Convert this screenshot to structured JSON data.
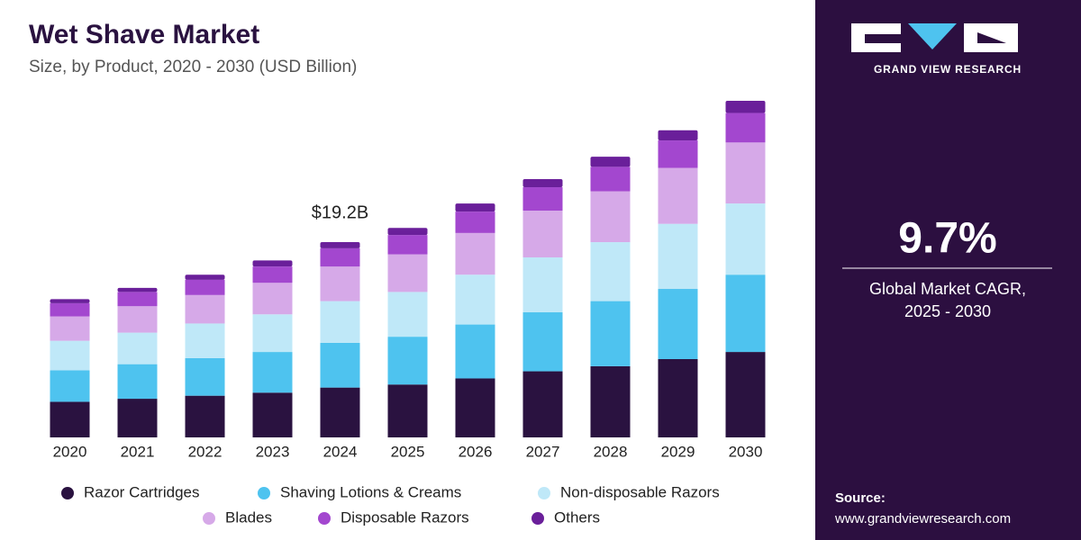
{
  "chart_data": {
    "type": "stacked_bar",
    "title": "Wet Shave Market",
    "subtitle": "Size, by Product, 2020 - 2030 (USD Billion)",
    "categories": [
      "2020",
      "2021",
      "2022",
      "2023",
      "2024",
      "2025",
      "2026",
      "2027",
      "2028",
      "2029",
      "2030"
    ],
    "series": [
      {
        "name": "Razor Cartridges",
        "color": "#2a1240",
        "values": [
          3.5,
          3.8,
          4.1,
          4.4,
          4.9,
          5.2,
          5.8,
          6.5,
          7.0,
          7.7,
          8.4
        ]
      },
      {
        "name": "Shaving Lotions & Creams",
        "color": "#4ec3ef",
        "values": [
          3.1,
          3.4,
          3.7,
          4.0,
          4.4,
          4.7,
          5.3,
          5.8,
          6.4,
          6.9,
          7.6
        ]
      },
      {
        "name": "Non-disposable Razors",
        "color": "#bfe8f8",
        "values": [
          2.9,
          3.1,
          3.4,
          3.7,
          4.1,
          4.4,
          4.9,
          5.4,
          5.8,
          6.4,
          7.0
        ]
      },
      {
        "name": "Blades",
        "color": "#d6a9e8",
        "values": [
          2.4,
          2.6,
          2.8,
          3.1,
          3.4,
          3.7,
          4.1,
          4.6,
          5.0,
          5.5,
          6.0
        ]
      },
      {
        "name": "Disposable Razors",
        "color": "#a347cf",
        "values": [
          1.3,
          1.4,
          1.5,
          1.6,
          1.8,
          1.9,
          2.1,
          2.3,
          2.4,
          2.7,
          2.9
        ]
      },
      {
        "name": "Others",
        "color": "#6a1f9a",
        "values": [
          0.4,
          0.4,
          0.5,
          0.6,
          0.6,
          0.7,
          0.8,
          0.8,
          1.0,
          1.0,
          1.2
        ]
      }
    ],
    "total_label": {
      "category": "2024",
      "value": 19.2,
      "label": "$19.2B"
    }
  },
  "sidebar": {
    "brand": "GRAND VIEW RESEARCH",
    "cagr": "9.7%",
    "cagr_caption_line1": "Global Market CAGR,",
    "cagr_caption_line2": "2025 - 2030",
    "source_label": "Source:",
    "source_url": "www.grandviewresearch.com"
  }
}
